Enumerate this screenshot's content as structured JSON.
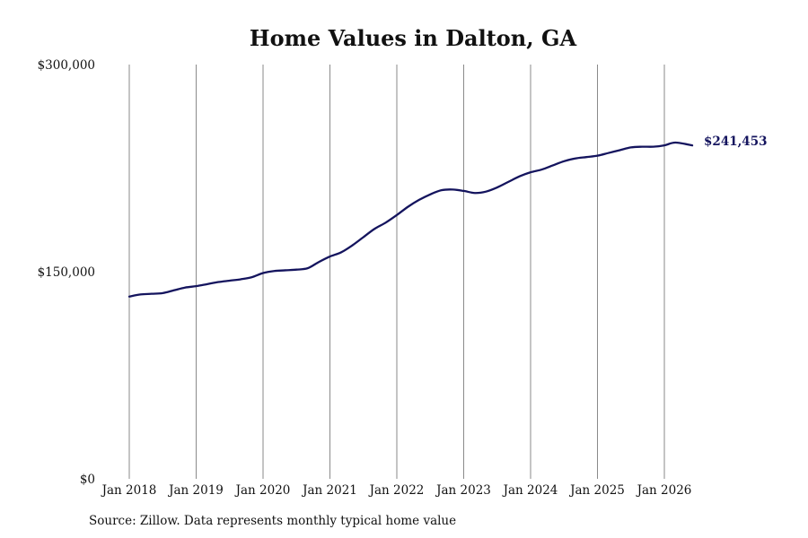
{
  "chart_data": {
    "type": "line",
    "title": "Home Values in Dalton, GA",
    "xlabel": "",
    "ylabel": "",
    "ylim": [
      0,
      300000
    ],
    "yticks": [
      0,
      150000,
      300000
    ],
    "ytick_labels": [
      "$0",
      "$150,000",
      "$300,000"
    ],
    "xticks": [
      "Jan 2018",
      "Jan 2019",
      "Jan 2020",
      "Jan 2021",
      "Jan 2022",
      "Jan 2023",
      "Jan 2024",
      "Jan 2025",
      "Jan 2026"
    ],
    "xlim": [
      "2018-01",
      "2026-06"
    ],
    "grid": "vertical",
    "end_label": "$241,453",
    "line_color": "#14145e",
    "series": [
      {
        "x": [
          "2018-01",
          "2018-03",
          "2018-05",
          "2018-07",
          "2018-09",
          "2018-11",
          "2019-01",
          "2019-03",
          "2019-05",
          "2019-07",
          "2019-09",
          "2019-11",
          "2020-01",
          "2020-03",
          "2020-05",
          "2020-07",
          "2020-09",
          "2020-11",
          "2021-01",
          "2021-03",
          "2021-05",
          "2021-07",
          "2021-09",
          "2021-11",
          "2022-01",
          "2022-03",
          "2022-05",
          "2022-07",
          "2022-09",
          "2022-11",
          "2023-01",
          "2023-03",
          "2023-05",
          "2023-07",
          "2023-09",
          "2023-11",
          "2024-01",
          "2024-03",
          "2024-05",
          "2024-07",
          "2024-09",
          "2024-11",
          "2025-01",
          "2025-03",
          "2025-05",
          "2025-07",
          "2025-09",
          "2025-11",
          "2026-01",
          "2026-03",
          "2026-06"
        ],
        "values": [
          132000,
          133500,
          134000,
          134500,
          136500,
          138500,
          139500,
          141000,
          142500,
          143500,
          144500,
          146000,
          149000,
          150500,
          151000,
          151500,
          152500,
          157000,
          161000,
          164000,
          169000,
          175000,
          181000,
          185500,
          191000,
          197000,
          202000,
          206000,
          209000,
          209500,
          208500,
          207000,
          208000,
          211000,
          215000,
          219000,
          222000,
          224000,
          227000,
          230000,
          232000,
          233000,
          234000,
          236000,
          238000,
          240000,
          240500,
          240500,
          241500,
          243500,
          241453
        ]
      }
    ]
  },
  "footer": {
    "source": "Source: Zillow. Data represents monthly typical home value"
  }
}
